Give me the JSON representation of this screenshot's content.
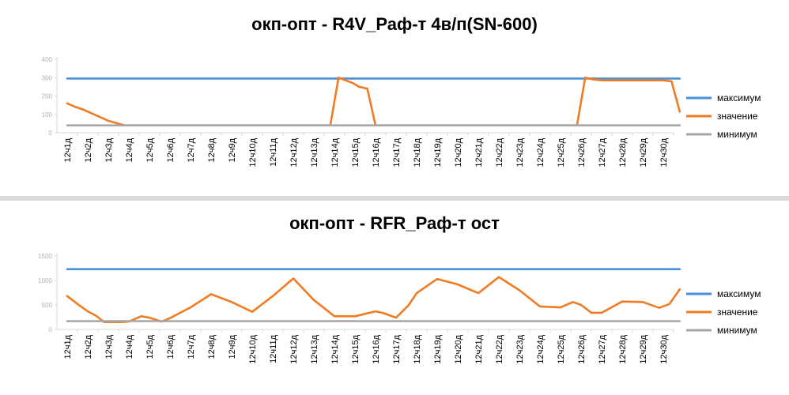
{
  "charts": [
    {
      "title": "окп-опт - R4V_Раф-т 4в/п(SN-600)",
      "type": "line",
      "categories": [
        "12ч1д",
        "12ч2д",
        "12ч3д",
        "12ч4д",
        "12ч5д",
        "12ч6д",
        "12ч7д",
        "12ч8д",
        "12ч9д",
        "12ч10д",
        "12ч11д",
        "12ч12д",
        "12ч13д",
        "12ч14д",
        "12ч15д",
        "12ч16д",
        "12ч17д",
        "12ч18д",
        "12ч19д",
        "12ч20д",
        "12ч21д",
        "12ч22д",
        "12ч23д",
        "12ч24д",
        "12ч25д",
        "12ч26д",
        "12ч27д",
        "12ч28д",
        "12ч29д",
        "12ч30д"
      ],
      "x": [
        0,
        0.4,
        0.8,
        1.2,
        1.6,
        2.0,
        2.8,
        3,
        4,
        5,
        6,
        7,
        8,
        9,
        10,
        11,
        12,
        12.8,
        13.2,
        13.9,
        14.2,
        14.6,
        15,
        16,
        17,
        18,
        19,
        20,
        21,
        22,
        23,
        24,
        24.8,
        25.2,
        25.6,
        26,
        27,
        28,
        29,
        29.4,
        29.8
      ],
      "y_ticks": [
        "0",
        "100",
        "200",
        "300",
        "400"
      ],
      "ylim": [
        0,
        400
      ],
      "series": [
        {
          "name": "максимум",
          "color": "#4a90d9",
          "x": [
            0,
            29.8
          ],
          "values": [
            295,
            295
          ]
        },
        {
          "name": "значение",
          "color": "#f07b22",
          "x": [
            0,
            0.4,
            0.8,
            1.2,
            1.6,
            2.0,
            2.8,
            12.8,
            13.2,
            13.9,
            14.2,
            14.6,
            15,
            24.8,
            25.2,
            25.6,
            26,
            29,
            29.4,
            29.8
          ],
          "values": [
            160,
            140,
            125,
            105,
            85,
            65,
            40,
            40,
            300,
            270,
            250,
            240,
            40,
            40,
            300,
            290,
            285,
            285,
            280,
            115
          ]
        },
        {
          "name": "минимум",
          "color": "#a6a6a6",
          "x": [
            0,
            29.8
          ],
          "values": [
            40,
            40
          ]
        }
      ],
      "grid": false,
      "legend": "right"
    },
    {
      "title": "окп-опт - RFR_Раф-т ост",
      "type": "line",
      "categories": [
        "12ч1д",
        "12ч2д",
        "12ч3д",
        "12ч4д",
        "12ч5д",
        "12ч6д",
        "12ч7д",
        "12ч8д",
        "12ч9д",
        "12ч10д",
        "12ч11д",
        "12ч12д",
        "12ч13д",
        "12ч14д",
        "12ч15д",
        "12ч16д",
        "12ч17д",
        "12ч18д",
        "12ч19д",
        "12ч20д",
        "12ч21д",
        "12ч22д",
        "12ч23д",
        "12ч24д",
        "12ч25д",
        "12ч26д",
        "12ч27д",
        "12ч28д",
        "12ч29д",
        "12ч30д"
      ],
      "y_ticks": [
        "0",
        "500",
        "1000",
        "1500"
      ],
      "ylim": [
        0,
        1500
      ],
      "series": [
        {
          "name": "максимум",
          "color": "#4a90d9",
          "x": [
            0,
            29.8
          ],
          "values": [
            1230,
            1230
          ]
        },
        {
          "name": "значение",
          "color": "#f07b22",
          "x": [
            0,
            0.5,
            1.0,
            1.4,
            1.8,
            2.6,
            3.0,
            3.6,
            4.0,
            4.6,
            5.0,
            6.0,
            7.0,
            8.0,
            9.0,
            10.0,
            11.0,
            12.0,
            13.0,
            14.0,
            15.0,
            15.4,
            16.0,
            16.6,
            17.0,
            18.0,
            19.0,
            20.0,
            21.0,
            22.0,
            23.0,
            24.0,
            24.6,
            25.0,
            25.5,
            26.0,
            27.0,
            28.0,
            28.8,
            29.3,
            29.8
          ],
          "values": [
            680,
            520,
            370,
            280,
            150,
            150,
            160,
            270,
            240,
            160,
            230,
            450,
            720,
            560,
            360,
            680,
            1040,
            600,
            270,
            270,
            370,
            330,
            240,
            490,
            740,
            1030,
            920,
            740,
            1070,
            800,
            470,
            450,
            560,
            500,
            340,
            340,
            570,
            560,
            440,
            520,
            820
          ]
        },
        {
          "name": "минимум",
          "color": "#a6a6a6",
          "x": [
            0,
            29.8
          ],
          "values": [
            170,
            170
          ]
        }
      ],
      "grid": false,
      "legend": "right"
    }
  ]
}
